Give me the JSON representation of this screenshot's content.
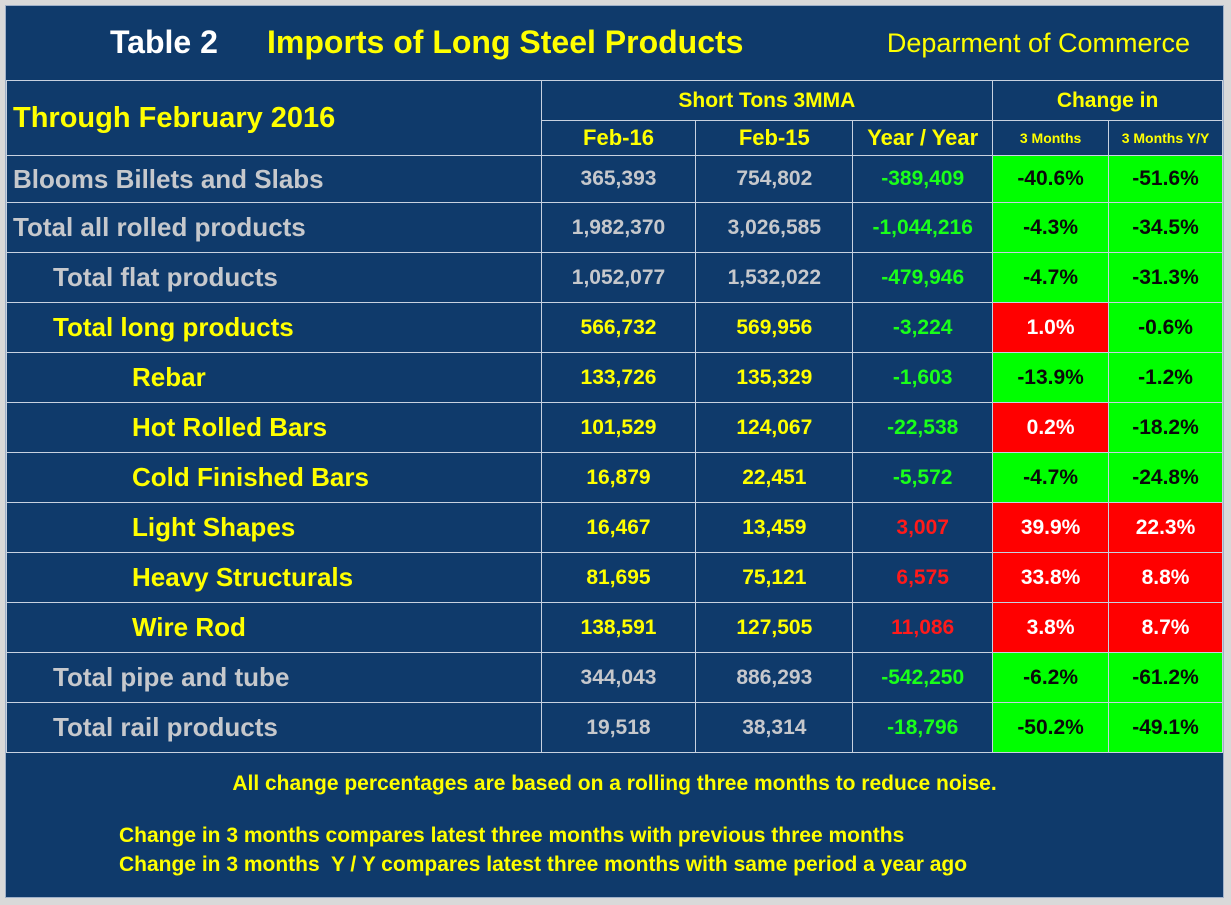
{
  "header": {
    "table_label": "Table 2",
    "title": "Imports of Long Steel Products",
    "source": "Deparment of Commerce"
  },
  "columns": {
    "period_label": "Through February 2016",
    "group_tons": "Short Tons 3MMA",
    "group_change": "Change in",
    "col_feb16": "Feb-16",
    "col_feb15": "Feb-15",
    "col_yy": "Year / Year",
    "col_3m": "3 Months",
    "col_3m_yy": "3 Months Y/Y"
  },
  "rows": [
    {
      "label": "Blooms Billets and Slabs",
      "feb16": "365,393",
      "feb15": "754,802",
      "yy": "-389,409",
      "m3": "-40.6%",
      "m3yy": "-51.6%"
    },
    {
      "label": "Total all rolled products",
      "feb16": "1,982,370",
      "feb15": "3,026,585",
      "yy": "-1,044,216",
      "m3": "-4.3%",
      "m3yy": "-34.5%"
    },
    {
      "label": "Total flat products",
      "feb16": "1,052,077",
      "feb15": "1,532,022",
      "yy": "-479,946",
      "m3": "-4.7%",
      "m3yy": "-31.3%"
    },
    {
      "label": "Total long products",
      "feb16": "566,732",
      "feb15": "569,956",
      "yy": "-3,224",
      "m3": "1.0%",
      "m3yy": "-0.6%"
    },
    {
      "label": "Rebar",
      "feb16": "133,726",
      "feb15": "135,329",
      "yy": "-1,603",
      "m3": "-13.9%",
      "m3yy": "-1.2%"
    },
    {
      "label": "Hot Rolled Bars",
      "feb16": "101,529",
      "feb15": "124,067",
      "yy": "-22,538",
      "m3": "0.2%",
      "m3yy": "-18.2%"
    },
    {
      "label": "Cold Finished Bars",
      "feb16": "16,879",
      "feb15": "22,451",
      "yy": "-5,572",
      "m3": "-4.7%",
      "m3yy": "-24.8%"
    },
    {
      "label": "Light Shapes",
      "feb16": "16,467",
      "feb15": "13,459",
      "yy": "3,007",
      "m3": "39.9%",
      "m3yy": "22.3%"
    },
    {
      "label": "Heavy Structurals",
      "feb16": "81,695",
      "feb15": "75,121",
      "yy": "6,575",
      "m3": "33.8%",
      "m3yy": "8.8%"
    },
    {
      "label": "Wire Rod",
      "feb16": "138,591",
      "feb15": "127,505",
      "yy": "11,086",
      "m3": "3.8%",
      "m3yy": "8.7%"
    },
    {
      "label": "Total pipe and tube",
      "feb16": "344,043",
      "feb15": "886,293",
      "yy": "-542,250",
      "m3": "-6.2%",
      "m3yy": "-61.2%"
    },
    {
      "label": "Total rail products",
      "feb16": "19,518",
      "feb15": "38,314",
      "yy": "-18,796",
      "m3": "-50.2%",
      "m3yy": "-49.1%"
    }
  ],
  "notes": {
    "rolling": "All change percentages are based on a rolling three months to reduce noise.",
    "three_months": "Change in 3 months compares latest three months with previous three months",
    "three_months_yy": "Change in 3 months  Y / Y compares latest three months with same period a year ago"
  },
  "colors": {
    "background": "#0f3a6b",
    "text_yellow": "#ffff00",
    "text_gray": "#c6c8cc",
    "text_green": "#1aff1a",
    "text_red": "#ff1a1a",
    "cell_increase": "#ff0000",
    "cell_decrease": "#00ff00"
  }
}
